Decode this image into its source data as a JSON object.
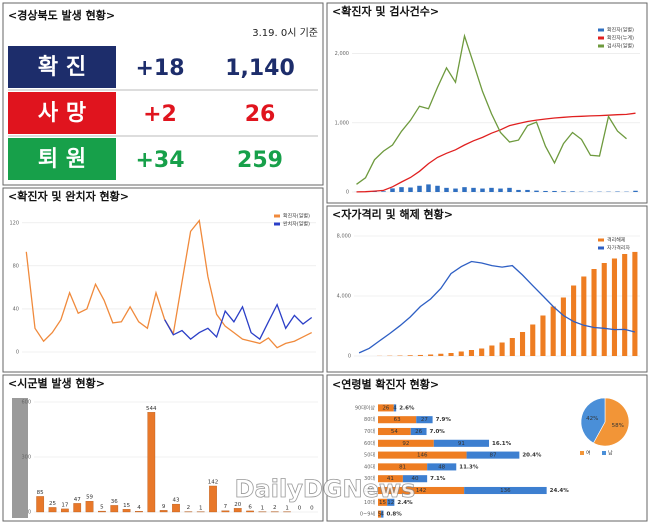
{
  "summary": {
    "title": "<경상북도 발생 현황>",
    "date": "3.19. 0시 기준",
    "rows": [
      {
        "label": "확 진",
        "change": "+18",
        "total": "1,140"
      },
      {
        "label": "사 망",
        "change": "+2",
        "total": "26"
      },
      {
        "label": "퇴 원",
        "change": "+34",
        "total": "259"
      }
    ]
  },
  "watermark": "DailyDGNews",
  "chart_data": [
    {
      "type": "line",
      "title": "<확진자 및 완치자 현황>",
      "ylim": [
        0,
        130
      ],
      "yticks": [
        0,
        40,
        80,
        120
      ],
      "series": [
        {
          "name": "확진자(일별)",
          "color": "#f08a3c",
          "values": [
            93,
            22,
            10,
            18,
            30,
            55,
            36,
            40,
            63,
            48,
            27,
            28,
            42,
            28,
            22,
            55,
            30,
            17,
            65,
            112,
            122,
            70,
            35,
            24,
            18,
            12,
            10,
            8,
            13,
            4,
            8,
            10,
            14,
            18
          ]
        },
        {
          "name": "완치자(일별)",
          "color": "#2b3fc7",
          "values": [
            null,
            null,
            null,
            null,
            null,
            null,
            null,
            null,
            null,
            null,
            null,
            null,
            null,
            null,
            null,
            null,
            30,
            16,
            20,
            12,
            18,
            22,
            14,
            38,
            28,
            42,
            18,
            12,
            28,
            44,
            22,
            34,
            26,
            32
          ]
        }
      ]
    },
    {
      "type": "bar",
      "title": "<시군별 발생 현황>",
      "ylim": [
        0,
        600
      ],
      "yticks": [
        0,
        300,
        600
      ],
      "color": "#e8782a",
      "values": [
        85,
        25,
        17,
        47,
        59,
        5,
        36,
        15,
        4,
        544,
        9,
        43,
        2,
        1,
        142,
        7,
        20,
        6,
        1,
        2,
        1,
        0,
        0
      ]
    },
    {
      "type": "combo",
      "title": "<확진자 및 검사건수>",
      "ylim": [
        0,
        2400
      ],
      "yticks": [
        0,
        {
          "value": 1000,
          "label": "1,000"
        },
        {
          "value": 2000,
          "label": "2,000"
        }
      ],
      "series": [
        {
          "name": "확진자(일별)",
          "kind": "bar",
          "color": "#2f6fc0",
          "values": [
            1,
            3,
            8,
            10,
            52,
            70,
            65,
            90,
            110,
            90,
            60,
            50,
            70,
            60,
            50,
            60,
            50,
            60,
            30,
            30,
            20,
            15,
            15,
            10,
            10,
            5,
            5,
            5,
            5,
            7,
            5,
            18
          ]
        },
        {
          "name": "확진자(누계)",
          "kind": "line",
          "color": "#e02020",
          "values": [
            1,
            5,
            13,
            23,
            75,
            145,
            210,
            300,
            410,
            500,
            560,
            610,
            680,
            740,
            790,
            850,
            900,
            960,
            990,
            1020,
            1040,
            1055,
            1070,
            1080,
            1090,
            1095,
            1100,
            1105,
            1110,
            1117,
            1122,
            1140
          ]
        },
        {
          "name": "검사자(일별)",
          "kind": "line",
          "color": "#6e9a3e",
          "values": [
            112,
            205,
            465,
            591,
            680,
            877,
            1037,
            1240,
            1205,
            1512,
            1794,
            1586,
            2256,
            1859,
            1454,
            1130,
            860,
            723,
            750,
            960,
            1010,
            660,
            420,
            700,
            860,
            760,
            530,
            520,
            1091,
            880,
            770,
            null
          ]
        }
      ]
    },
    {
      "type": "combo",
      "title": "<자가격리 및 해제 현황>",
      "ylim": [
        0,
        8000
      ],
      "yticks": [
        0,
        {
          "value": 4000,
          "label": "4,000"
        },
        {
          "value": 8000,
          "label": "8,000"
        }
      ],
      "series": [
        {
          "name": "격리해제",
          "kind": "bar",
          "color": "#ee7d22",
          "values": [
            0,
            0,
            10,
            20,
            30,
            50,
            70,
            100,
            150,
            200,
            300,
            400,
            500,
            700,
            900,
            1200,
            1600,
            2100,
            2700,
            3300,
            3900,
            4700,
            5300,
            5800,
            6200,
            6500,
            6800,
            6939
          ]
        },
        {
          "name": "자가격리자",
          "kind": "line",
          "color": "#2e5fc4",
          "values": [
            205,
            515,
            1008,
            1500,
            2020,
            2600,
            3300,
            3800,
            4500,
            5490,
            5960,
            6301,
            6200,
            6028,
            5930,
            6025,
            5400,
            4687,
            4000,
            3300,
            2700,
            2300,
            2050,
            1900,
            1850,
            1763,
            1774,
            1600
          ]
        }
      ]
    },
    {
      "type": "hbar",
      "title": "<연령별 확진자 현황>",
      "xlim": [
        0,
        300
      ],
      "categories": [
        "90대이상",
        "80대",
        "70대",
        "60대",
        "50대",
        "40대",
        "30대",
        "20대",
        "10대",
        "0~9세"
      ],
      "series": [
        {
          "color": "#ee7d22",
          "values": [
            26,
            63,
            54,
            92,
            146,
            81,
            41,
            142,
            15,
            5
          ]
        },
        {
          "color": "#3d7fd0",
          "values": [
            4,
            27,
            26,
            91,
            87,
            48,
            40,
            136,
            12,
            4
          ]
        }
      ],
      "shares": [
        2.6,
        7.9,
        7.0,
        16.1,
        20.4,
        11.3,
        7.1,
        24.4,
        2.4,
        0.8
      ],
      "share_labels": [
        "2.6%",
        "7.9%",
        "7.0%",
        "16.1%",
        "20.4%",
        "11.3%",
        "7.1%",
        "24.4%",
        "2.4%",
        "0.8%"
      ]
    },
    {
      "type": "pie",
      "categories": [
        "여",
        "남"
      ],
      "colors": [
        "#f29537",
        "#4a8fd8"
      ],
      "values": [
        58,
        42
      ],
      "value_labels": [
        "58%",
        "42%"
      ]
    }
  ]
}
